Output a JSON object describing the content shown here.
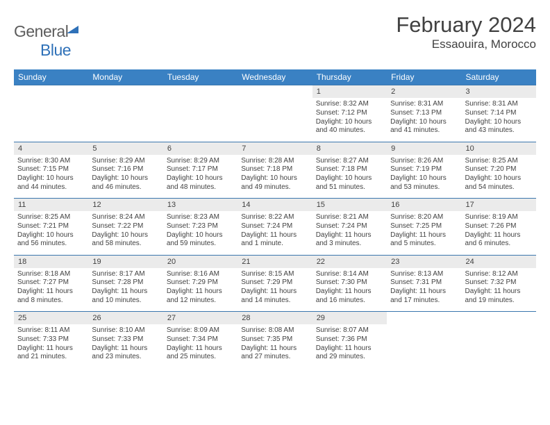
{
  "brand": {
    "part1": "General",
    "part2": "Blue"
  },
  "title": "February 2024",
  "location": "Essaouira, Morocco",
  "colors": {
    "header_bg": "#3a81c3",
    "header_fg": "#ffffff",
    "row_divider": "#3a76ad",
    "daynum_bg": "#ebebeb",
    "text": "#414141",
    "brand_blue": "#2f71b8"
  },
  "fonts": {
    "title_size": 31,
    "location_size": 17,
    "dayhead_size": 12,
    "daynum_size": 11,
    "body_size": 10
  },
  "day_headers": [
    "Sunday",
    "Monday",
    "Tuesday",
    "Wednesday",
    "Thursday",
    "Friday",
    "Saturday"
  ],
  "weeks": [
    [
      null,
      null,
      null,
      null,
      {
        "n": "1",
        "sr": "Sunrise: 8:32 AM",
        "ss": "Sunset: 7:12 PM",
        "dl1": "Daylight: 10 hours",
        "dl2": "and 40 minutes."
      },
      {
        "n": "2",
        "sr": "Sunrise: 8:31 AM",
        "ss": "Sunset: 7:13 PM",
        "dl1": "Daylight: 10 hours",
        "dl2": "and 41 minutes."
      },
      {
        "n": "3",
        "sr": "Sunrise: 8:31 AM",
        "ss": "Sunset: 7:14 PM",
        "dl1": "Daylight: 10 hours",
        "dl2": "and 43 minutes."
      }
    ],
    [
      {
        "n": "4",
        "sr": "Sunrise: 8:30 AM",
        "ss": "Sunset: 7:15 PM",
        "dl1": "Daylight: 10 hours",
        "dl2": "and 44 minutes."
      },
      {
        "n": "5",
        "sr": "Sunrise: 8:29 AM",
        "ss": "Sunset: 7:16 PM",
        "dl1": "Daylight: 10 hours",
        "dl2": "and 46 minutes."
      },
      {
        "n": "6",
        "sr": "Sunrise: 8:29 AM",
        "ss": "Sunset: 7:17 PM",
        "dl1": "Daylight: 10 hours",
        "dl2": "and 48 minutes."
      },
      {
        "n": "7",
        "sr": "Sunrise: 8:28 AM",
        "ss": "Sunset: 7:18 PM",
        "dl1": "Daylight: 10 hours",
        "dl2": "and 49 minutes."
      },
      {
        "n": "8",
        "sr": "Sunrise: 8:27 AM",
        "ss": "Sunset: 7:18 PM",
        "dl1": "Daylight: 10 hours",
        "dl2": "and 51 minutes."
      },
      {
        "n": "9",
        "sr": "Sunrise: 8:26 AM",
        "ss": "Sunset: 7:19 PM",
        "dl1": "Daylight: 10 hours",
        "dl2": "and 53 minutes."
      },
      {
        "n": "10",
        "sr": "Sunrise: 8:25 AM",
        "ss": "Sunset: 7:20 PM",
        "dl1": "Daylight: 10 hours",
        "dl2": "and 54 minutes."
      }
    ],
    [
      {
        "n": "11",
        "sr": "Sunrise: 8:25 AM",
        "ss": "Sunset: 7:21 PM",
        "dl1": "Daylight: 10 hours",
        "dl2": "and 56 minutes."
      },
      {
        "n": "12",
        "sr": "Sunrise: 8:24 AM",
        "ss": "Sunset: 7:22 PM",
        "dl1": "Daylight: 10 hours",
        "dl2": "and 58 minutes."
      },
      {
        "n": "13",
        "sr": "Sunrise: 8:23 AM",
        "ss": "Sunset: 7:23 PM",
        "dl1": "Daylight: 10 hours",
        "dl2": "and 59 minutes."
      },
      {
        "n": "14",
        "sr": "Sunrise: 8:22 AM",
        "ss": "Sunset: 7:24 PM",
        "dl1": "Daylight: 11 hours",
        "dl2": "and 1 minute."
      },
      {
        "n": "15",
        "sr": "Sunrise: 8:21 AM",
        "ss": "Sunset: 7:24 PM",
        "dl1": "Daylight: 11 hours",
        "dl2": "and 3 minutes."
      },
      {
        "n": "16",
        "sr": "Sunrise: 8:20 AM",
        "ss": "Sunset: 7:25 PM",
        "dl1": "Daylight: 11 hours",
        "dl2": "and 5 minutes."
      },
      {
        "n": "17",
        "sr": "Sunrise: 8:19 AM",
        "ss": "Sunset: 7:26 PM",
        "dl1": "Daylight: 11 hours",
        "dl2": "and 6 minutes."
      }
    ],
    [
      {
        "n": "18",
        "sr": "Sunrise: 8:18 AM",
        "ss": "Sunset: 7:27 PM",
        "dl1": "Daylight: 11 hours",
        "dl2": "and 8 minutes."
      },
      {
        "n": "19",
        "sr": "Sunrise: 8:17 AM",
        "ss": "Sunset: 7:28 PM",
        "dl1": "Daylight: 11 hours",
        "dl2": "and 10 minutes."
      },
      {
        "n": "20",
        "sr": "Sunrise: 8:16 AM",
        "ss": "Sunset: 7:29 PM",
        "dl1": "Daylight: 11 hours",
        "dl2": "and 12 minutes."
      },
      {
        "n": "21",
        "sr": "Sunrise: 8:15 AM",
        "ss": "Sunset: 7:29 PM",
        "dl1": "Daylight: 11 hours",
        "dl2": "and 14 minutes."
      },
      {
        "n": "22",
        "sr": "Sunrise: 8:14 AM",
        "ss": "Sunset: 7:30 PM",
        "dl1": "Daylight: 11 hours",
        "dl2": "and 16 minutes."
      },
      {
        "n": "23",
        "sr": "Sunrise: 8:13 AM",
        "ss": "Sunset: 7:31 PM",
        "dl1": "Daylight: 11 hours",
        "dl2": "and 17 minutes."
      },
      {
        "n": "24",
        "sr": "Sunrise: 8:12 AM",
        "ss": "Sunset: 7:32 PM",
        "dl1": "Daylight: 11 hours",
        "dl2": "and 19 minutes."
      }
    ],
    [
      {
        "n": "25",
        "sr": "Sunrise: 8:11 AM",
        "ss": "Sunset: 7:33 PM",
        "dl1": "Daylight: 11 hours",
        "dl2": "and 21 minutes."
      },
      {
        "n": "26",
        "sr": "Sunrise: 8:10 AM",
        "ss": "Sunset: 7:33 PM",
        "dl1": "Daylight: 11 hours",
        "dl2": "and 23 minutes."
      },
      {
        "n": "27",
        "sr": "Sunrise: 8:09 AM",
        "ss": "Sunset: 7:34 PM",
        "dl1": "Daylight: 11 hours",
        "dl2": "and 25 minutes."
      },
      {
        "n": "28",
        "sr": "Sunrise: 8:08 AM",
        "ss": "Sunset: 7:35 PM",
        "dl1": "Daylight: 11 hours",
        "dl2": "and 27 minutes."
      },
      {
        "n": "29",
        "sr": "Sunrise: 8:07 AM",
        "ss": "Sunset: 7:36 PM",
        "dl1": "Daylight: 11 hours",
        "dl2": "and 29 minutes."
      },
      null,
      null
    ]
  ]
}
